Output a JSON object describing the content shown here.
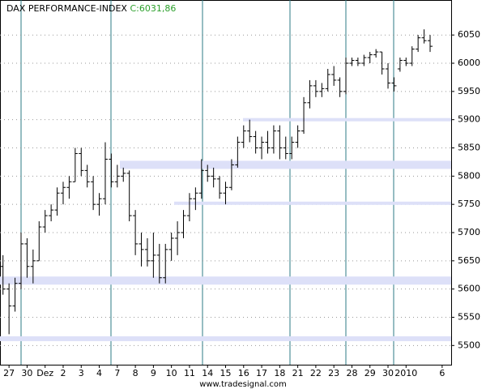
{
  "chart_data": {
    "type": "ohlc",
    "title": "DAX PERFORMANCE-INDEX",
    "subtitle": "C:6031,86",
    "footer": "www.tradesignal.com",
    "categories": [
      null,
      "27",
      null,
      null,
      "30",
      null,
      null,
      "Dez",
      null,
      null,
      "2",
      null,
      null,
      "3",
      null,
      null,
      "4",
      null,
      null,
      "7",
      null,
      null,
      "8",
      null,
      null,
      "9",
      null,
      null,
      "10",
      null,
      null,
      "11",
      null,
      null,
      "14",
      null,
      null,
      "15",
      null,
      null,
      "16",
      null,
      null,
      "17",
      null,
      null,
      "18",
      null,
      null,
      "21",
      null,
      null,
      "22",
      null,
      null,
      "23",
      null,
      null,
      "28",
      null,
      null,
      "29",
      null,
      null,
      "30",
      null,
      null,
      "2010",
      null,
      null,
      null,
      null,
      null,
      "6",
      null
    ],
    "open": [
      5640,
      5600,
      5570,
      5610,
      5680,
      5640,
      5650,
      5710,
      5730,
      5740,
      5770,
      5780,
      5790,
      5840,
      5810,
      5790,
      5750,
      5760,
      5830,
      5790,
      5800,
      5805,
      5730,
      5680,
      5670,
      5650,
      5660,
      5620,
      5670,
      5690,
      5700,
      5730,
      5760,
      5770,
      5810,
      5800,
      5795,
      5770,
      5780,
      5820,
      5860,
      5880,
      5870,
      5850,
      5860,
      5850,
      5880,
      5850,
      5840,
      5860,
      5880,
      5930,
      5960,
      5950,
      5955,
      5980,
      5970,
      5950,
      6000,
      6005,
      6000,
      6010,
      6015,
      6020,
      5990,
      5965,
      5990,
      6005,
      6000,
      6025,
      6045,
      6040,
      null,
      null,
      null
    ],
    "high": [
      5660,
      5610,
      5620,
      5700,
      5690,
      5670,
      5720,
      5740,
      5750,
      5780,
      5790,
      5800,
      5850,
      5850,
      5820,
      5800,
      5770,
      5860,
      5840,
      5820,
      5815,
      5810,
      5740,
      5700,
      5690,
      5700,
      5680,
      5680,
      5700,
      5720,
      5740,
      5770,
      5780,
      5830,
      5820,
      5815,
      5800,
      5790,
      5830,
      5870,
      5890,
      5900,
      5880,
      5870,
      5880,
      5890,
      5890,
      5870,
      5870,
      5890,
      5940,
      5970,
      5970,
      5965,
      5990,
      5995,
      5975,
      6010,
      6010,
      6010,
      6015,
      6020,
      6025,
      6020,
      6000,
      5975,
      6010,
      6010,
      6030,
      6050,
      6060,
      6050,
      null,
      null,
      null
    ],
    "low": [
      5590,
      5520,
      5560,
      5600,
      5620,
      5610,
      5650,
      5700,
      5720,
      5730,
      5750,
      5760,
      5790,
      5800,
      5780,
      5740,
      5730,
      5750,
      5780,
      5780,
      5790,
      5720,
      5660,
      5640,
      5640,
      5620,
      5610,
      5610,
      5650,
      5660,
      5690,
      5720,
      5740,
      5760,
      5790,
      5780,
      5760,
      5750,
      5775,
      5815,
      5850,
      5860,
      5840,
      5830,
      5840,
      5840,
      5830,
      5830,
      5830,
      5850,
      5875,
      5920,
      5940,
      5940,
      5950,
      5960,
      5940,
      5945,
      5995,
      5995,
      5995,
      6000,
      6010,
      5980,
      5955,
      5950,
      5985,
      5995,
      5995,
      6020,
      6035,
      6020,
      null,
      null,
      null
    ],
    "close": [
      5600,
      5570,
      5610,
      5680,
      5640,
      5650,
      5710,
      5730,
      5740,
      5770,
      5780,
      5790,
      5840,
      5810,
      5790,
      5750,
      5760,
      5830,
      5790,
      5800,
      5805,
      5730,
      5680,
      5670,
      5650,
      5660,
      5620,
      5670,
      5690,
      5700,
      5730,
      5760,
      5770,
      5810,
      5800,
      5795,
      5770,
      5780,
      5820,
      5860,
      5880,
      5870,
      5850,
      5860,
      5850,
      5880,
      5850,
      5840,
      5860,
      5880,
      5930,
      5960,
      5950,
      5955,
      5980,
      5970,
      5950,
      6000,
      6005,
      6000,
      6010,
      6015,
      6020,
      5990,
      5965,
      5960,
      6005,
      6000,
      6025,
      6045,
      6040,
      6030,
      null,
      null,
      null
    ],
    "levels": [
      5900,
      5820,
      5752,
      5615,
      5512
    ],
    "ylim": [
      5466,
      6112
    ],
    "yticks": [
      5500,
      5550,
      5600,
      5650,
      5700,
      5750,
      5800,
      5850,
      5900,
      5950,
      6000,
      6050
    ],
    "grid": true,
    "color": "#000000",
    "title_color": "#000000",
    "subtitle_color": "#2ca02c"
  }
}
